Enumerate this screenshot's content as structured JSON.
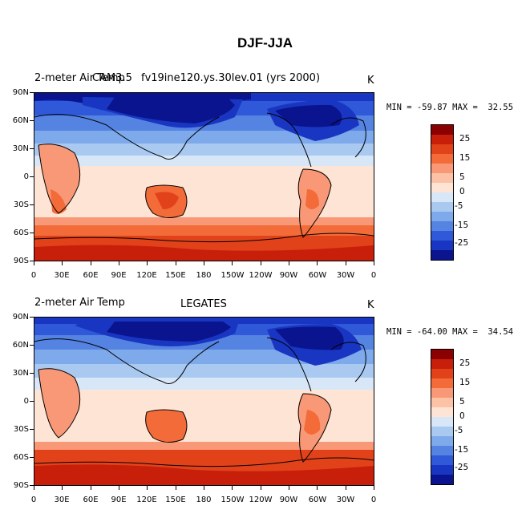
{
  "title": "DJF-JJA",
  "panels": [
    {
      "left_label": "2-meter Air Temp",
      "center_label": "CAM3.5",
      "right_label": "fv19ine120.ys.30lev.01 (yrs 2000)",
      "units": "K",
      "minmax": "MIN = -59.87 MAX =  32.55"
    },
    {
      "left_label": "2-meter Air Temp",
      "center_label": "LEGATES",
      "right_label": "",
      "units": "K",
      "minmax": "MIN = -64.00 MAX =  34.54"
    }
  ],
  "lat_labels": [
    "90N",
    "60N",
    "30N",
    "0",
    "30S",
    "60S",
    "90S"
  ],
  "lon_labels": [
    "0",
    "30E",
    "60E",
    "90E",
    "120E",
    "150E",
    "180",
    "150W",
    "120W",
    "90W",
    "60W",
    "30W",
    "0"
  ],
  "colorbar": {
    "labels": [
      "25",
      "15",
      "5",
      "0",
      "-5",
      "-15",
      "-25"
    ],
    "colors_top_to_bottom": [
      "#8b0000",
      "#c81f0b",
      "#e2421a",
      "#f26b38",
      "#f99876",
      "#fcc2a6",
      "#fde4d4",
      "#d8e7f8",
      "#a9c9f1",
      "#7ea9ea",
      "#5583e2",
      "#2f59d8",
      "#1936c2",
      "#0a148f"
    ]
  },
  "field_colors": {
    "deep_blue": "#0a148f",
    "blue": "#1936c2",
    "mid_blue": "#2f59d8",
    "light_blue": "#7ea9ea",
    "pale_blue": "#d8e7f8",
    "pale_orange": "#fde4d4",
    "light_orange": "#f99876",
    "orange": "#f26b38",
    "red": "#e2421a",
    "dark_red": "#c81f0b"
  }
}
